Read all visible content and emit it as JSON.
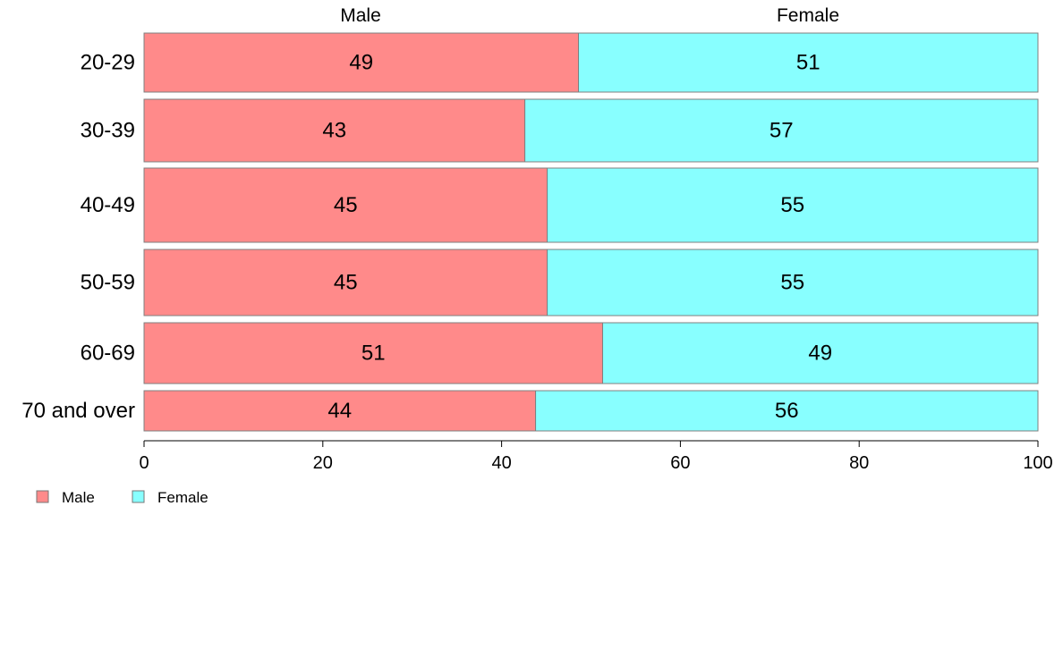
{
  "chart_data": {
    "type": "bar",
    "orientation": "horizontal",
    "stacked": true,
    "title": "",
    "xlabel": "",
    "ylabel": "",
    "xlim": [
      0,
      100
    ],
    "x_ticks": [
      "0",
      "20",
      "40",
      "60",
      "80",
      "100"
    ],
    "categories": [
      "20-29",
      "30-39",
      "40-49",
      "50-59",
      "60-69",
      "70 and over"
    ],
    "series": [
      {
        "name": "Male",
        "color": "#ff8a8a",
        "values": [
          48.6,
          42.6,
          45.1,
          45.1,
          51.3,
          43.8
        ],
        "labels": [
          "49",
          "43",
          "45",
          "45",
          "51",
          "44"
        ]
      },
      {
        "name": "Female",
        "color": "#88ffff",
        "values": [
          51.4,
          57.4,
          54.9,
          54.9,
          48.7,
          56.2
        ],
        "labels": [
          "51",
          "57",
          "55",
          "55",
          "49",
          "56"
        ]
      }
    ],
    "column_headers": [
      "Male",
      "Female"
    ],
    "legend": {
      "position": "bottom-left",
      "entries": [
        "Male",
        "Female"
      ]
    },
    "grid": false
  }
}
